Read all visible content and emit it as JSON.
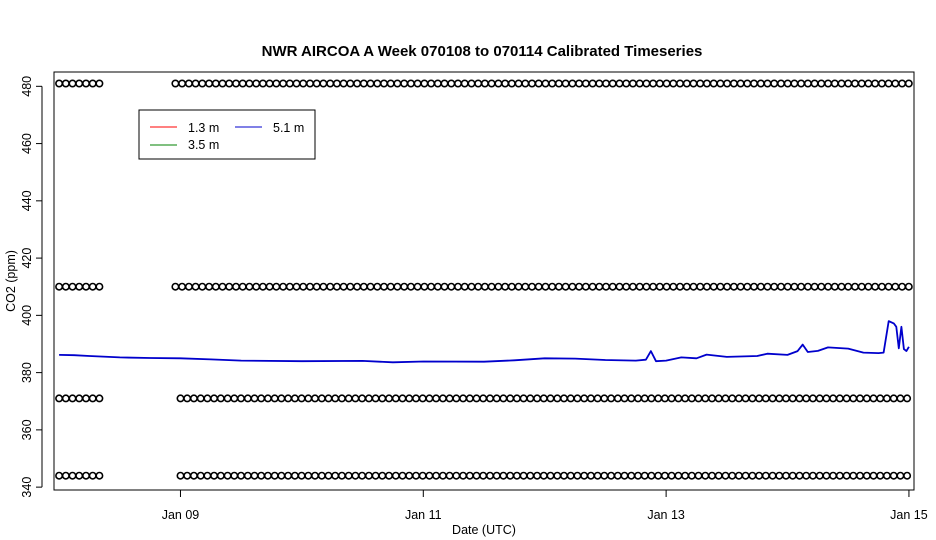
{
  "chart_data": {
    "type": "line",
    "title": "NWR AIRCOA A  Week 070108 to 070114  Calibrated Timeseries",
    "xlabel": "Date (UTC)",
    "ylabel": "CO2 (ppm)",
    "xlim": [
      "2007-01-07T23:00",
      "2007-01-15T01:00"
    ],
    "ylim": [
      339,
      485
    ],
    "x_ticks": [
      {
        "value": "2007-01-09T00:00",
        "label": "Jan 09"
      },
      {
        "value": "2007-01-11T00:00",
        "label": "Jan 11"
      },
      {
        "value": "2007-01-13T00:00",
        "label": "Jan 13"
      },
      {
        "value": "2007-01-15T00:00",
        "label": "Jan 15"
      }
    ],
    "y_ticks": [
      340,
      360,
      380,
      400,
      420,
      440,
      460,
      480
    ],
    "legend": {
      "position": "top-left",
      "entries": [
        {
          "label": "1.3 m",
          "color": "#ff0000"
        },
        {
          "label": "3.5 m",
          "color": "#008000"
        },
        {
          "label": "5.1 m",
          "color": "#0000cc"
        }
      ]
    },
    "series": [
      {
        "name": "5.1 m",
        "color": "#0000cc",
        "points": [
          [
            "2007-01-08T00:00",
            386.2
          ],
          [
            "2007-01-08T03:00",
            386.1
          ],
          [
            "2007-01-08T06:00",
            385.8
          ],
          [
            "2007-01-08T12:00",
            385.3
          ],
          [
            "2007-01-08T18:00",
            385.1
          ],
          [
            "2007-01-09T00:00",
            385.0
          ],
          [
            "2007-01-09T06:00",
            384.6
          ],
          [
            "2007-01-09T12:00",
            384.2
          ],
          [
            "2007-01-10T00:00",
            384.0
          ],
          [
            "2007-01-10T12:00",
            384.1
          ],
          [
            "2007-01-10T18:00",
            383.6
          ],
          [
            "2007-01-11T00:00",
            383.9
          ],
          [
            "2007-01-11T12:00",
            383.8
          ],
          [
            "2007-01-11T18:00",
            384.3
          ],
          [
            "2007-01-12T00:00",
            385.0
          ],
          [
            "2007-01-12T06:00",
            384.9
          ],
          [
            "2007-01-12T12:00",
            384.4
          ],
          [
            "2007-01-12T18:00",
            384.2
          ],
          [
            "2007-01-12T20:00",
            384.5
          ],
          [
            "2007-01-12T21:00",
            387.5
          ],
          [
            "2007-01-12T22:00",
            384.0
          ],
          [
            "2007-01-13T00:00",
            384.2
          ],
          [
            "2007-01-13T03:00",
            385.3
          ],
          [
            "2007-01-13T06:00",
            385.0
          ],
          [
            "2007-01-13T08:00",
            386.3
          ],
          [
            "2007-01-13T12:00",
            385.5
          ],
          [
            "2007-01-13T18:00",
            385.8
          ],
          [
            "2007-01-13T20:00",
            386.6
          ],
          [
            "2007-01-14T00:00",
            386.2
          ],
          [
            "2007-01-14T02:00",
            387.5
          ],
          [
            "2007-01-14T03:00",
            389.8
          ],
          [
            "2007-01-14T04:00",
            387.2
          ],
          [
            "2007-01-14T06:00",
            387.6
          ],
          [
            "2007-01-14T08:00",
            388.8
          ],
          [
            "2007-01-14T12:00",
            388.4
          ],
          [
            "2007-01-14T15:00",
            387.0
          ],
          [
            "2007-01-14T18:00",
            386.8
          ],
          [
            "2007-01-14T19:00",
            387.0
          ],
          [
            "2007-01-14T20:00",
            398.0
          ],
          [
            "2007-01-14T21:00",
            397.2
          ],
          [
            "2007-01-14T21:30",
            396.0
          ],
          [
            "2007-01-14T22:00",
            388.5
          ],
          [
            "2007-01-14T22:30",
            396.0
          ],
          [
            "2007-01-14T23:00",
            388.2
          ],
          [
            "2007-01-14T23:30",
            387.5
          ],
          [
            "2007-01-15T00:00",
            389.0
          ]
        ]
      }
    ],
    "flag_rows": [
      {
        "y": 481,
        "segments": [
          [
            "2007-01-08T00:00",
            "2007-01-08T08:00"
          ],
          [
            "2007-01-08T23:00",
            "2007-01-15T00:00"
          ]
        ]
      },
      {
        "y": 410,
        "segments": [
          [
            "2007-01-08T00:00",
            "2007-01-08T08:00"
          ],
          [
            "2007-01-08T23:00",
            "2007-01-15T00:00"
          ]
        ]
      },
      {
        "y": 371,
        "segments": [
          [
            "2007-01-08T00:00",
            "2007-01-08T08:00"
          ],
          [
            "2007-01-09T00:00",
            "2007-01-15T00:00"
          ]
        ]
      },
      {
        "y": 344,
        "segments": [
          [
            "2007-01-08T00:00",
            "2007-01-08T08:00"
          ],
          [
            "2007-01-09T00:00",
            "2007-01-15T00:00"
          ]
        ]
      }
    ],
    "flag_marker": "open circle",
    "grid": false
  }
}
